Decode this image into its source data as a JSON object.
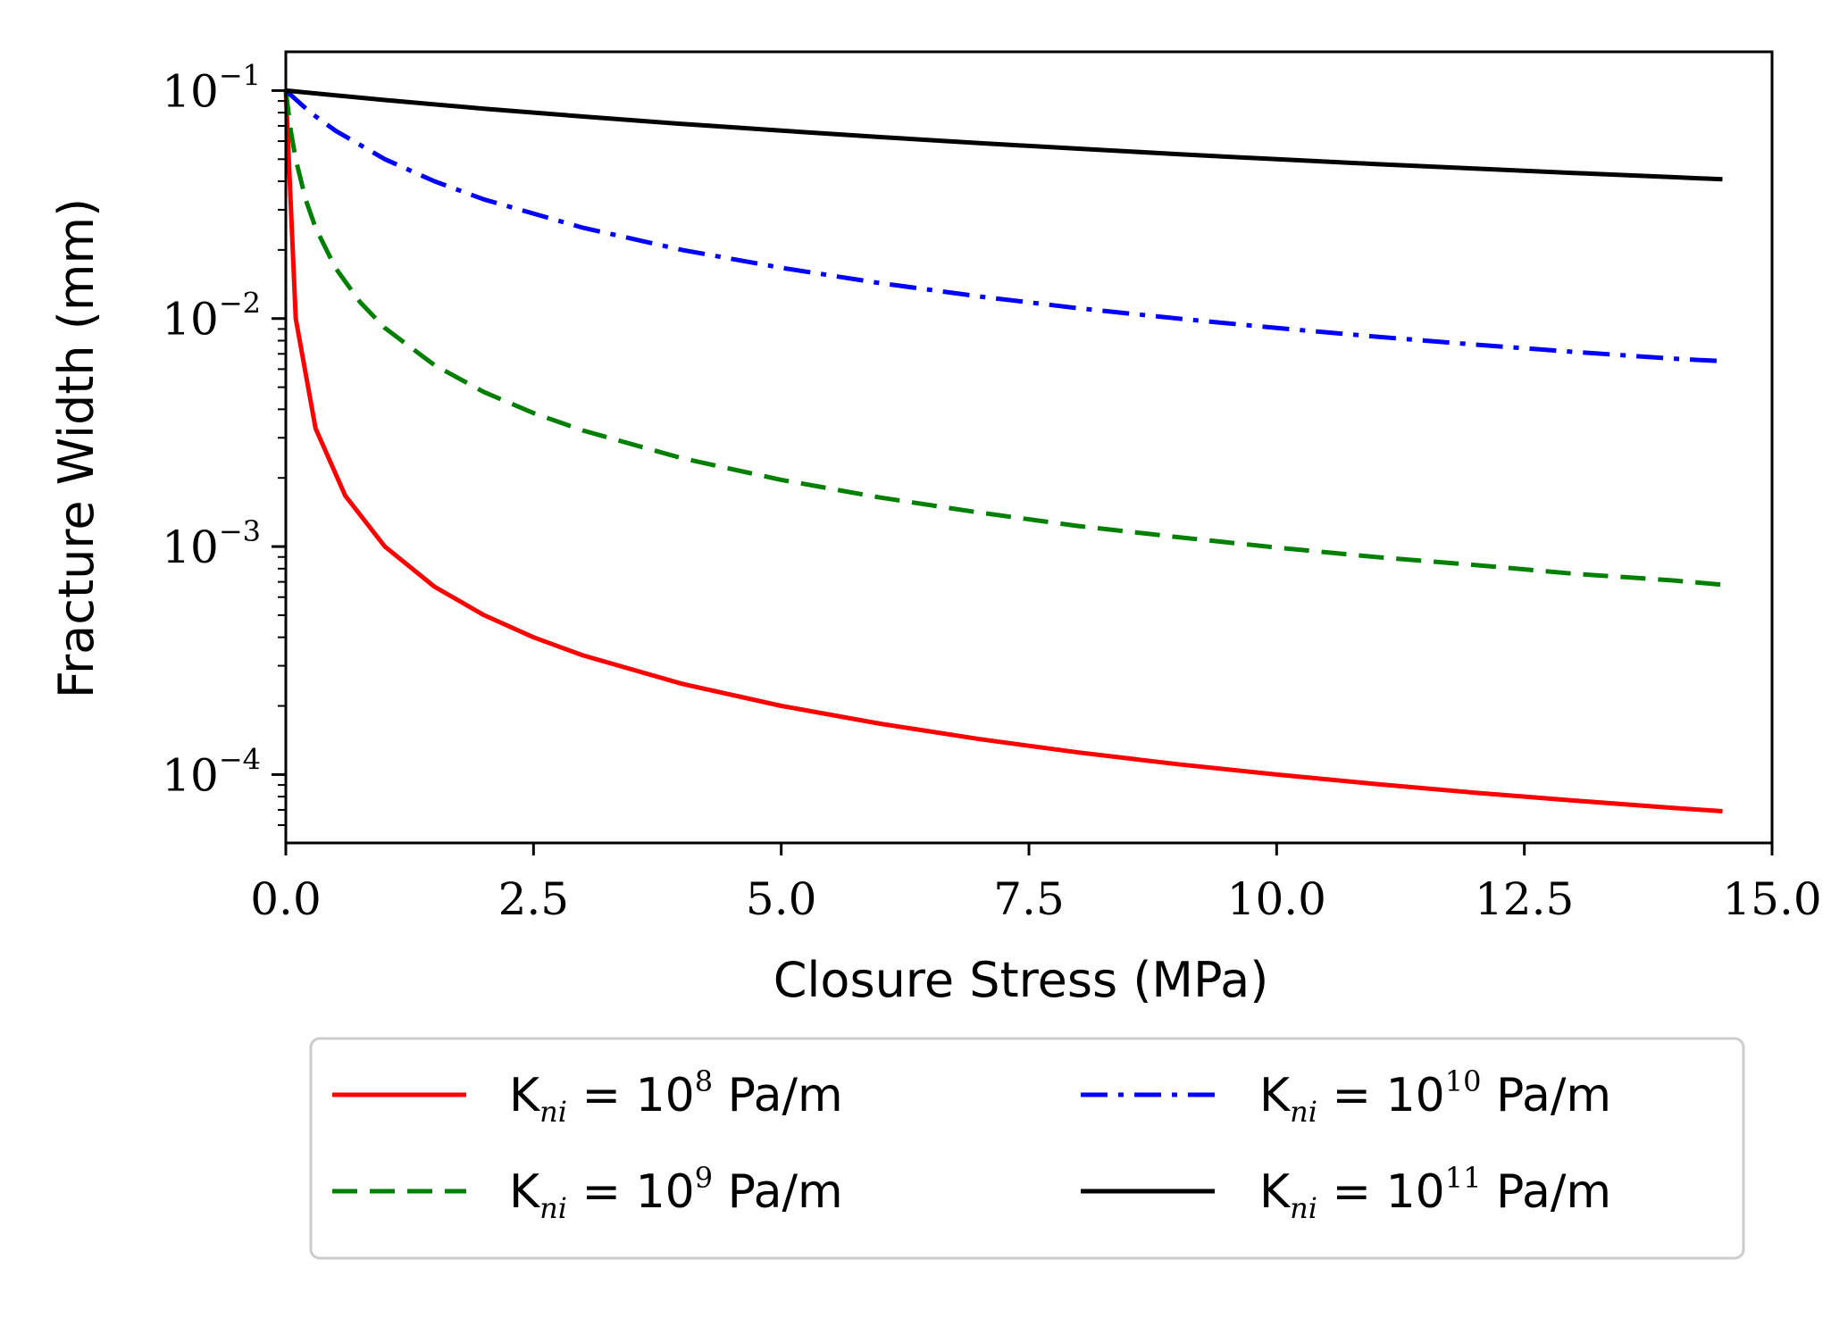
{
  "chart_data": {
    "type": "line",
    "xlabel": "Closure Stress (MPa)",
    "ylabel": "Fracture Width (mm)",
    "xlim": [
      0,
      15
    ],
    "ylim_log10": [
      -4.3,
      -0.83
    ],
    "yscale": "log",
    "x_ticks": [
      0.0,
      2.5,
      5.0,
      7.5,
      10.0,
      12.5,
      15.0
    ],
    "x_tick_labels": [
      "0.0",
      "2.5",
      "5.0",
      "7.5",
      "10.0",
      "12.5",
      "15.0"
    ],
    "y_ticks": [
      {
        "base": "10",
        "exp": "−1",
        "value": 0.1
      },
      {
        "base": "10",
        "exp": "−2",
        "value": 0.01
      },
      {
        "base": "10",
        "exp": "−3",
        "value": 0.001
      },
      {
        "base": "10",
        "exp": "−4",
        "value": 0.0001
      }
    ],
    "legend_placement": "below",
    "series": [
      {
        "name": "Kni = 10^8 Pa/m",
        "label_main": "K",
        "label_sub": "ni",
        "label_eq": " = 10",
        "label_exp": "8",
        "label_unit": " Pa/m",
        "color": "#ff0000",
        "dash": "solid",
        "x": [
          0.0,
          0.1,
          0.3,
          0.6,
          1.0,
          1.5,
          2.0,
          2.5,
          3.0,
          4.0,
          5.0,
          6.0,
          7.0,
          8.0,
          9.0,
          10.0,
          11.0,
          12.0,
          13.0,
          14.0,
          14.5
        ],
        "y": [
          0.1,
          0.01,
          0.0033,
          0.00167,
          0.001,
          0.000667,
          0.0005,
          0.0004,
          0.000333,
          0.00025,
          0.0002,
          0.000167,
          0.000143,
          0.000125,
          0.000111,
          0.0001,
          9.09e-05,
          8.33e-05,
          7.69e-05,
          7.14e-05,
          6.9e-05
        ]
      },
      {
        "name": "Kni = 10^9 Pa/m",
        "label_main": "K",
        "label_sub": "ni",
        "label_eq": " = 10",
        "label_exp": "9",
        "label_unit": " Pa/m",
        "color": "#008000",
        "dash": "dashed",
        "x": [
          0.0,
          0.05,
          0.1,
          0.2,
          0.3,
          0.5,
          0.75,
          1.0,
          1.5,
          2.0,
          2.5,
          3.0,
          4.0,
          5.0,
          6.0,
          7.0,
          8.0,
          9.0,
          10.0,
          11.0,
          12.0,
          13.0,
          14.0,
          14.5
        ],
        "y": [
          0.1,
          0.0667,
          0.05,
          0.0333,
          0.025,
          0.0167,
          0.0118,
          0.00909,
          0.00625,
          0.00476,
          0.00385,
          0.00323,
          0.00244,
          0.00196,
          0.00164,
          0.00141,
          0.00123,
          0.0011,
          0.00099,
          0.0009,
          0.00083,
          0.00076,
          0.00071,
          0.00068
        ]
      },
      {
        "name": "Kni = 10^10 Pa/m",
        "label_main": "K",
        "label_sub": "ni",
        "label_eq": " = 10",
        "label_exp": "10",
        "label_unit": " Pa/m",
        "color": "#0000ff",
        "dash": "dashdot",
        "x": [
          0.0,
          0.25,
          0.5,
          1.0,
          1.5,
          2.0,
          3.0,
          4.0,
          5.0,
          6.0,
          7.0,
          8.0,
          9.0,
          10.0,
          11.0,
          12.0,
          13.0,
          14.0,
          14.5
        ],
        "y": [
          0.1,
          0.08,
          0.0667,
          0.05,
          0.04,
          0.0333,
          0.025,
          0.02,
          0.0167,
          0.0143,
          0.0125,
          0.0111,
          0.01,
          0.00909,
          0.00833,
          0.00769,
          0.00714,
          0.00667,
          0.0065
        ]
      },
      {
        "name": "Kni = 10^11 Pa/m",
        "label_main": "K",
        "label_sub": "ni",
        "label_eq": " = 10",
        "label_exp": "11",
        "label_unit": " Pa/m",
        "color": "#000000",
        "dash": "solid",
        "x": [
          0.0,
          1.0,
          2.0,
          3.0,
          4.0,
          5.0,
          6.0,
          7.0,
          8.0,
          9.0,
          10.0,
          11.0,
          12.0,
          13.0,
          14.0,
          14.5
        ],
        "y": [
          0.1,
          0.0909,
          0.0833,
          0.0769,
          0.0714,
          0.0667,
          0.0625,
          0.0588,
          0.0556,
          0.0526,
          0.05,
          0.0476,
          0.0455,
          0.0435,
          0.0417,
          0.0408
        ]
      }
    ]
  }
}
